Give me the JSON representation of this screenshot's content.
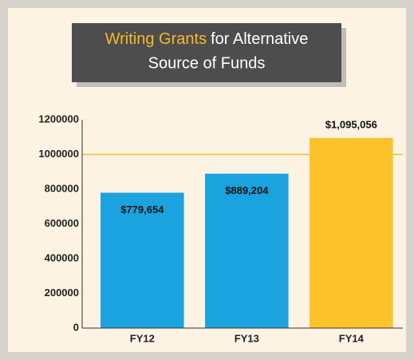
{
  "chart_data": {
    "type": "bar",
    "title": {
      "highlight": "Writing Grants",
      "line1_rest": "for Alternative",
      "line2": "Source of Funds"
    },
    "categories": [
      "FY12",
      "FY13",
      "FY14"
    ],
    "values": [
      779654,
      889204,
      1095056
    ],
    "value_labels": [
      "$779,654",
      "$889,204",
      "$1,095,056"
    ],
    "colors": [
      "#1ba3df",
      "#1ba3df",
      "#fcc22a"
    ],
    "ylim": [
      0,
      1200000
    ],
    "yticks": [
      0,
      200000,
      400000,
      600000,
      800000,
      1000000,
      1200000
    ],
    "reference_line": 1000000,
    "reference_color": "#f4c02f"
  }
}
